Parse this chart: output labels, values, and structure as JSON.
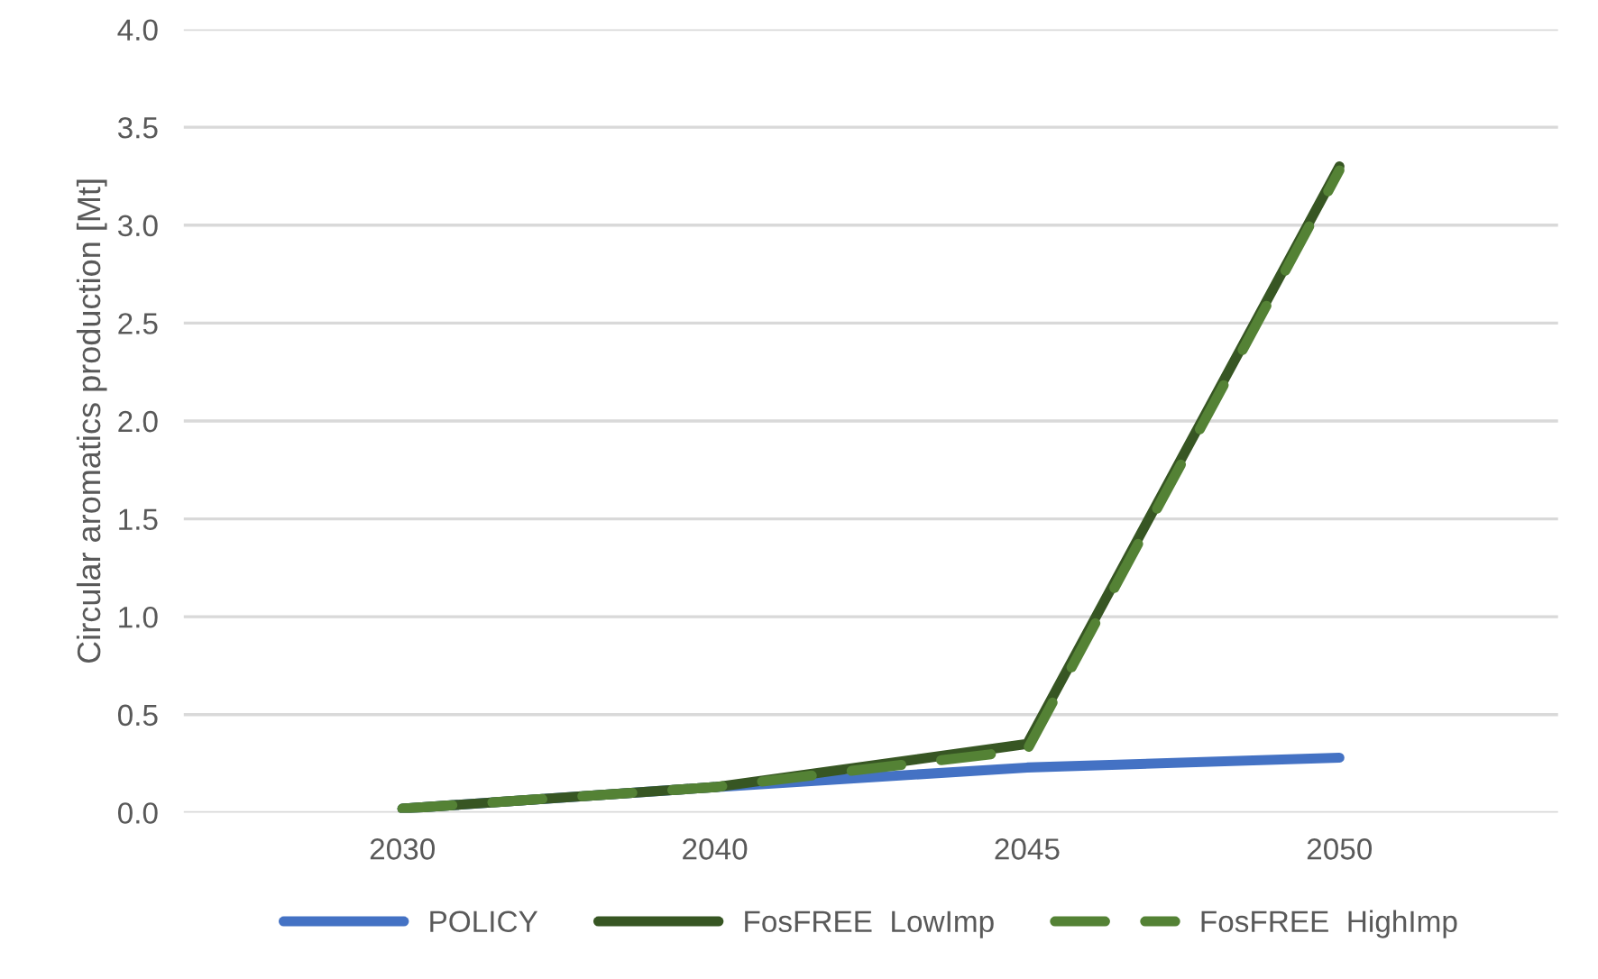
{
  "chart_data": {
    "type": "line",
    "ylabel": "Circular aromatics production [Mt]",
    "categories": [
      "2030",
      "2040",
      "2045",
      "2050"
    ],
    "series": [
      {
        "name": "POLICY",
        "color": "#4472c4",
        "values": [
          0.02,
          0.13,
          0.23,
          0.28
        ],
        "line_style": "solid"
      },
      {
        "name": "FosFREE  LowImp",
        "color": "#375623",
        "values": [
          0.02,
          0.13,
          0.35,
          3.3
        ],
        "line_style": "solid"
      },
      {
        "name": "FosFREE  HighImp",
        "color": "#548235",
        "values": [
          0.02,
          0.13,
          0.32,
          3.28
        ],
        "line_style": "dashed"
      }
    ],
    "ylim": [
      0,
      4
    ],
    "yticks": [
      {
        "value": 0,
        "label": "0.0"
      },
      {
        "value": 0.5,
        "label": "0.5"
      },
      {
        "value": 1,
        "label": "1.0"
      },
      {
        "value": 1.5,
        "label": "1.5"
      },
      {
        "value": 2,
        "label": "2.0"
      },
      {
        "value": 2.5,
        "label": "2.5"
      },
      {
        "value": 3,
        "label": "3.0"
      },
      {
        "value": 3.5,
        "label": "3.5"
      },
      {
        "value": 4,
        "label": "4.0"
      }
    ],
    "grid": "y",
    "legend": "bottom",
    "marker": "none"
  }
}
